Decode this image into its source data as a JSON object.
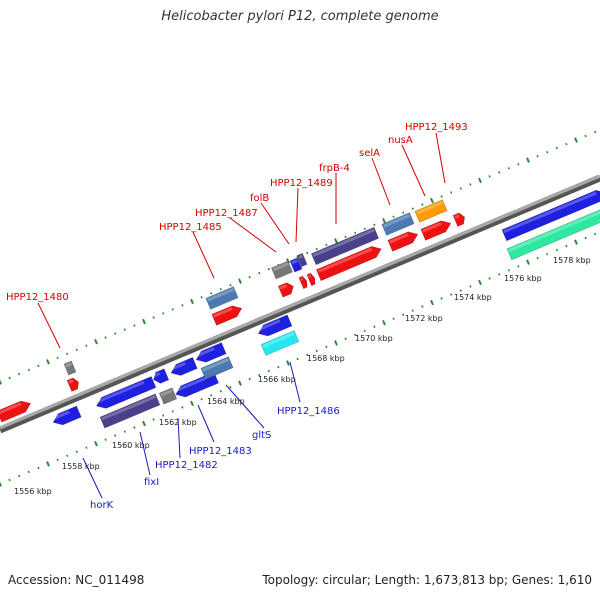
{
  "title": "Helicobacter pylori P12, complete genome",
  "accession": "Accession: NC_011498",
  "summary": "Topology: circular; Length: 1,673,813 bp; Genes: 1,610",
  "scale_labels": [
    "1556 kbp",
    "1558 kbp",
    "1560 kbp",
    "1562 kbp",
    "1564 kbp",
    "1566 kbp",
    "1568 kbp",
    "1570 kbp",
    "1572 kbp",
    "1574 kbp",
    "1576 kbp",
    "1578 kbp"
  ],
  "gene_labels_forward": [
    "HPP12_1480",
    "HPP12_1485",
    "HPP12_1487",
    "folB",
    "HPP12_1489",
    "frpB-4",
    "selA",
    "nusA",
    "HPP12_1493"
  ],
  "gene_labels_reverse": [
    "horK",
    "fixI",
    "HPP12_1482",
    "HPP12_1483",
    "gltS",
    "HPP12_1486"
  ],
  "colors": {
    "forward_label": "#d40000",
    "reverse_label": "#1a1abf",
    "backbone": "#8a8a8a",
    "tick": "#2a8a2a",
    "gene_red": "#ee1111",
    "gene_blue": "#1f1fe0",
    "gene_steel": "#4a7ab0",
    "gene_dark": "#4a3f8a",
    "gene_gray": "#777777",
    "gene_orange": "#ff9a00",
    "gene_cyan": "#22e8f0",
    "gene_green": "#2ee8a0"
  }
}
